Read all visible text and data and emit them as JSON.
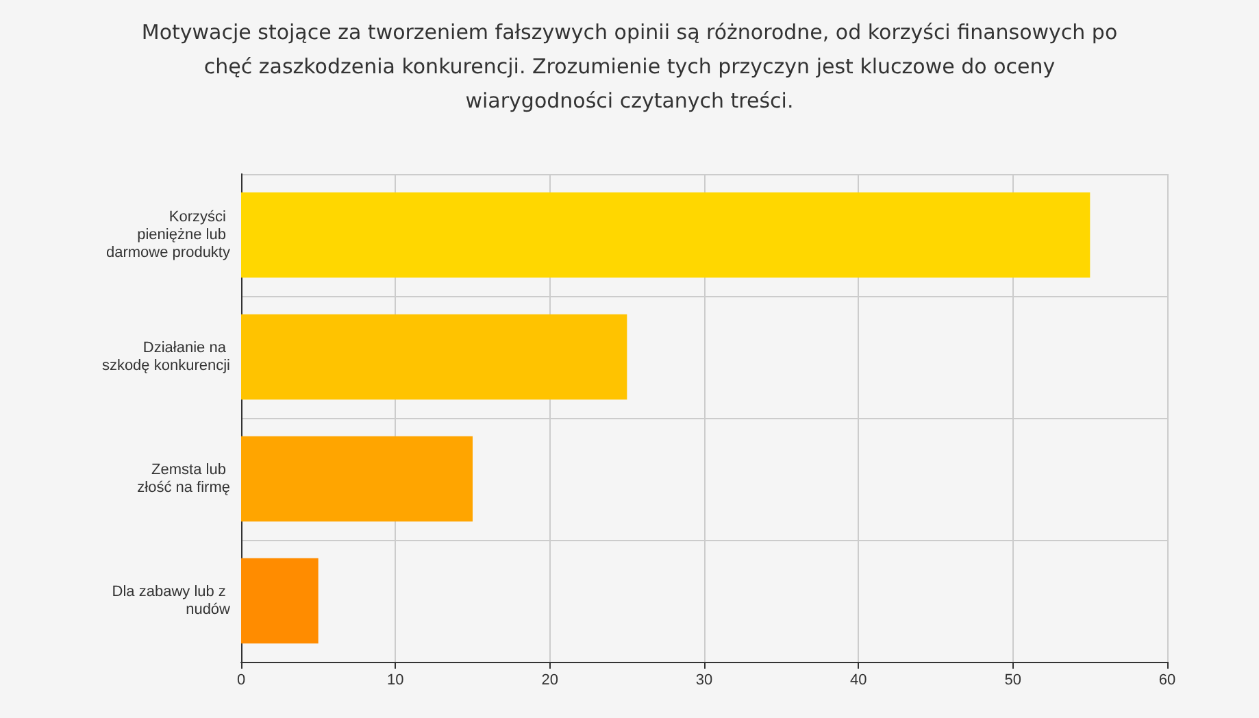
{
  "chart_data": {
    "type": "bar",
    "orientation": "horizontal",
    "title": "Motywacje stojące za tworzeniem fałszywych opinii są różnorodne, od korzyści finansowych po chęć zaszkodzenia konkurencji. Zrozumienie tych przyczyn jest kluczowe do oceny wiarygodności czytanych treści.",
    "categories": [
      "Korzyści pieniężne lub darmowe produkty",
      "Działanie na szkodę konkurencji",
      "Zemsta lub złość na firmę",
      "Dla zabawy lub z nudów"
    ],
    "values": [
      55,
      25,
      15,
      5
    ],
    "colors": [
      "#ffd700",
      "#ffc300",
      "#ffa500",
      "#ff8c00"
    ],
    "xlim": [
      0,
      60
    ],
    "xticks": [
      0,
      10,
      20,
      30,
      40,
      50,
      60
    ],
    "grid": true
  }
}
